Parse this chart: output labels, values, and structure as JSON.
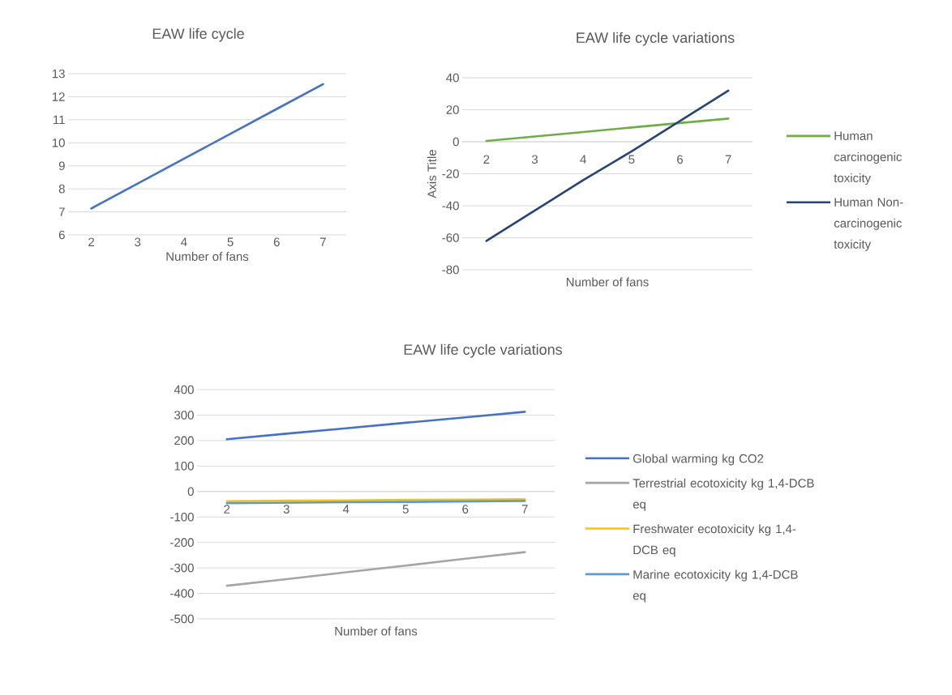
{
  "chart_data": [
    {
      "type": "line",
      "title": "EAW life cycle",
      "xlabel": "Number of fans",
      "categories": [
        "2",
        "3",
        "4",
        "5",
        "6",
        "7"
      ],
      "ylim": [
        6,
        13
      ],
      "yticks": [
        6,
        7,
        8,
        9,
        10,
        11,
        12,
        13
      ],
      "grid": "y",
      "series": [
        {
          "color": "#4472c4",
          "values": [
            7.15,
            8.23,
            9.31,
            10.39,
            11.47,
            12.55
          ]
        }
      ]
    },
    {
      "type": "line",
      "title": "EAW life cycle variations",
      "xlabel": "Number of fans",
      "ylabel": "Axis Title",
      "categories": [
        "2",
        "3",
        "4",
        "5",
        "6",
        "7"
      ],
      "ylim": [
        -80,
        40
      ],
      "yticks": [
        -80,
        -60,
        -40,
        -20,
        0,
        20,
        40
      ],
      "grid": "y",
      "legend": "right",
      "series": [
        {
          "name": "Human carcinogenic toxicity",
          "color": "#70ad47",
          "values": [
            0.5,
            3.3,
            6.1,
            8.9,
            11.7,
            14.5
          ]
        },
        {
          "name": "Human Non-carcinogenic toxicity",
          "color": "#264478",
          "values": [
            -62,
            -43,
            -24,
            -6,
            13,
            32
          ]
        }
      ]
    },
    {
      "type": "line",
      "title": "EAW life cycle variations",
      "xlabel": "Number of fans",
      "categories": [
        "2",
        "3",
        "4",
        "5",
        "6",
        "7"
      ],
      "ylim": [
        -500,
        400
      ],
      "yticks": [
        -500,
        -400,
        -300,
        -200,
        -100,
        0,
        100,
        200,
        300,
        400
      ],
      "grid": "y",
      "legend": "right",
      "series": [
        {
          "name": "Global warming kg CO2",
          "color": "#4472c4",
          "values": [
            205,
            227,
            248,
            270,
            291,
            313
          ]
        },
        {
          "name": "Terrestrial ecotoxicity kg 1,4-DCB eq",
          "color": "#a5a5a5",
          "values": [
            -370,
            -344,
            -317,
            -291,
            -264,
            -238
          ]
        },
        {
          "name": "Freshwater ecotoxicity kg 1,4-DCB eq",
          "color": "#ffc000",
          "values": [
            -38,
            -36,
            -35,
            -33,
            -32,
            -30
          ]
        },
        {
          "name": "Marine ecotoxicity kg 1,4-DCB eq",
          "color": "#5b9bd5",
          "values": [
            -46,
            -44,
            -42,
            -41,
            -39,
            -37
          ]
        }
      ]
    }
  ]
}
